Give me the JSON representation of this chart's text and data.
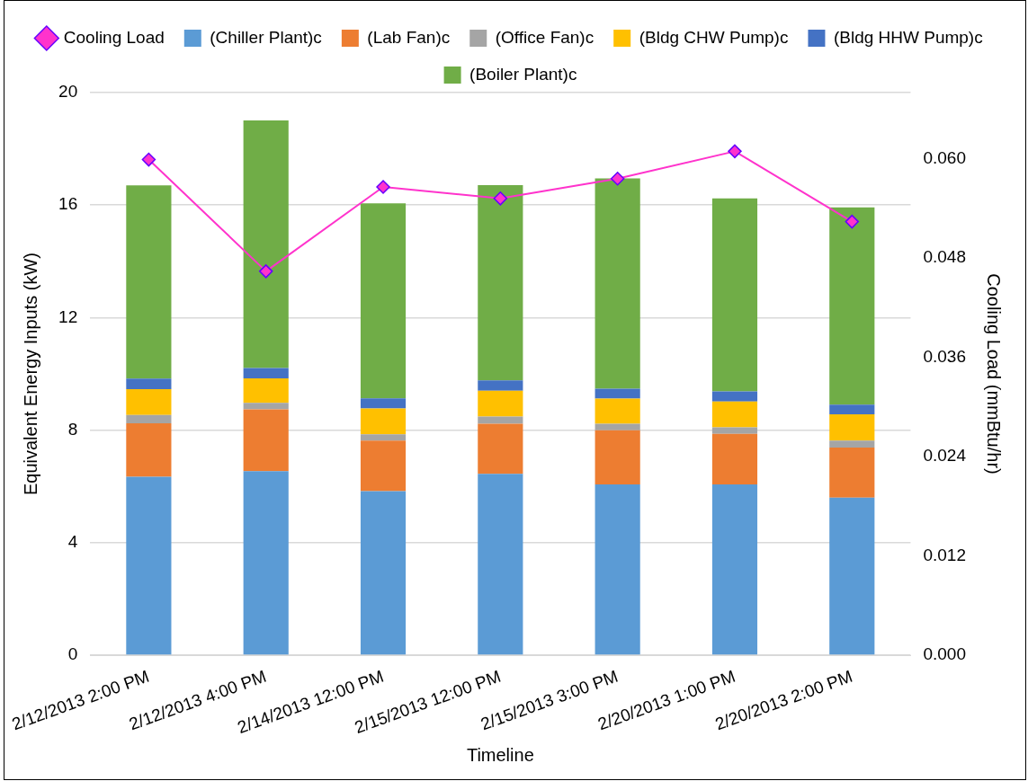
{
  "chart_data": {
    "type": "bar",
    "stacked": true,
    "xlabel": "Timeline",
    "ylabel": "Equivalent Energy Inputs (kW)",
    "y2label": "Cooling Load (mmBtu/hr)",
    "categories": [
      "2/12/2013 2:00 PM",
      "2/12/2013 4:00 PM",
      "2/14/2013 12:00 PM",
      "2/15/2013 12:00 PM",
      "2/15/2013 3:00 PM",
      "2/20/2013 1:00 PM",
      "2/20/2013 2:00 PM"
    ],
    "series": [
      {
        "name": "(Chiller Plant)c",
        "color": "#5b9bd5",
        "values": [
          6.34,
          6.54,
          5.83,
          6.45,
          6.07,
          6.07,
          5.6
        ]
      },
      {
        "name": "(Lab Fan)c",
        "color": "#ed7d31",
        "values": [
          1.9,
          2.2,
          1.8,
          1.78,
          1.93,
          1.8,
          1.78
        ]
      },
      {
        "name": "(Office Fan)c",
        "color": "#a5a5a5",
        "values": [
          0.3,
          0.23,
          0.22,
          0.25,
          0.23,
          0.23,
          0.25
        ]
      },
      {
        "name": "(Bldg CHW Pump)c",
        "color": "#ffc000",
        "values": [
          0.92,
          0.87,
          0.92,
          0.92,
          0.89,
          0.92,
          0.93
        ]
      },
      {
        "name": "(Bldg HHW Pump)c",
        "color": "#4472c4",
        "values": [
          0.37,
          0.37,
          0.36,
          0.37,
          0.35,
          0.36,
          0.35
        ]
      },
      {
        "name": "(Boiler Plant)c",
        "color": "#70ad47",
        "values": [
          6.87,
          8.8,
          6.93,
          6.94,
          7.48,
          6.86,
          7.01
        ]
      },
      {
        "name": "Cooling Load",
        "type": "line",
        "axis": "y2",
        "color": "#ff33cc",
        "marker": "diamond",
        "values": [
          0.0599,
          0.0464,
          0.0566,
          0.0552,
          0.0576,
          0.0609,
          0.0524
        ]
      }
    ],
    "ylim": [
      0,
      20
    ],
    "yticks": [
      0,
      4,
      8,
      12,
      16,
      20
    ],
    "y2lim": [
      0,
      0.068
    ],
    "y2ticks": [
      {
        "value": 0,
        "label": "0.000"
      },
      {
        "value": 0.012,
        "label": "0.012"
      },
      {
        "value": 0.024,
        "label": "0.024"
      },
      {
        "value": 0.036,
        "label": "0.036"
      },
      {
        "value": 0.048,
        "label": "0.048"
      },
      {
        "value": 0.06,
        "label": "0.060"
      }
    ],
    "grid": "y",
    "legend": "top"
  }
}
